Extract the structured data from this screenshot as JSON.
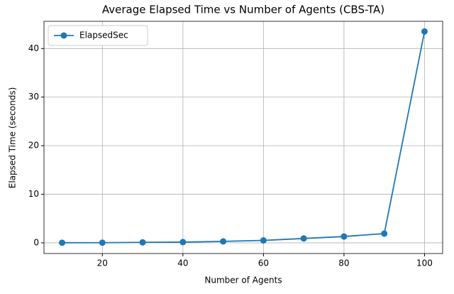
{
  "chart_data": {
    "type": "line",
    "title": "Average Elapsed Time vs Number of Agents (CBS-TA)",
    "xlabel": "Number of Agents",
    "ylabel": "Elapsed Time (seconds)",
    "x": [
      10,
      20,
      30,
      40,
      50,
      60,
      70,
      80,
      90,
      100
    ],
    "series": [
      {
        "name": "ElapsedSec",
        "color": "#1f77b4",
        "values": [
          0.02,
          0.03,
          0.1,
          0.15,
          0.3,
          0.5,
          0.9,
          1.3,
          1.9,
          43.5
        ]
      }
    ],
    "xlim": [
      5.5,
      104.5
    ],
    "ylim": [
      -2.2,
      45.6
    ],
    "xticks": [
      20,
      40,
      60,
      80,
      100
    ],
    "yticks": [
      0,
      10,
      20,
      30,
      40
    ],
    "grid": true,
    "legend": "upper-left"
  }
}
